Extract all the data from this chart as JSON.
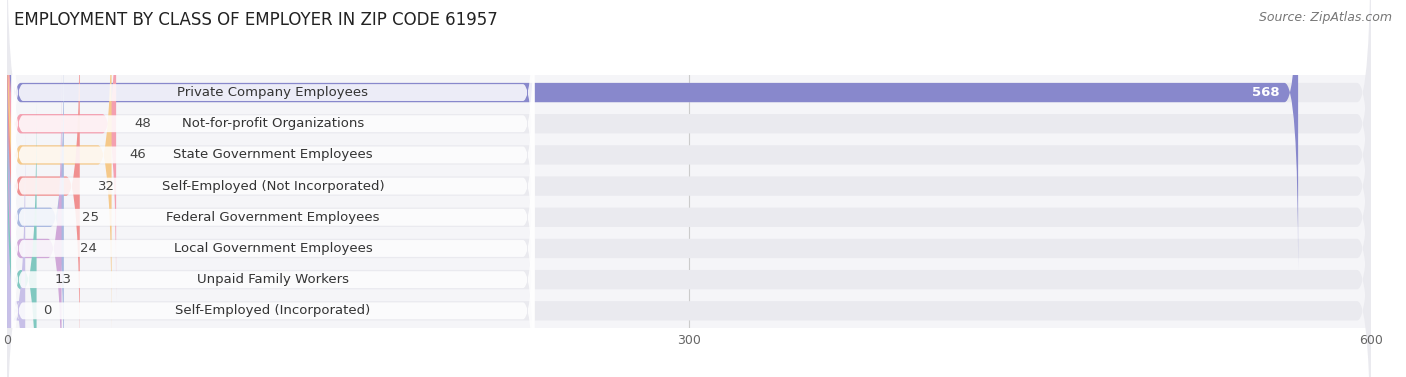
{
  "title": "EMPLOYMENT BY CLASS OF EMPLOYER IN ZIP CODE 61957",
  "source": "Source: ZipAtlas.com",
  "categories": [
    "Private Company Employees",
    "Not-for-profit Organizations",
    "State Government Employees",
    "Self-Employed (Not Incorporated)",
    "Federal Government Employees",
    "Local Government Employees",
    "Unpaid Family Workers",
    "Self-Employed (Incorporated)"
  ],
  "values": [
    568,
    48,
    46,
    32,
    25,
    24,
    13,
    0
  ],
  "bar_colors": [
    "#8888cc",
    "#f4a0b0",
    "#f5c98a",
    "#f09090",
    "#a8b8e0",
    "#d0a8d8",
    "#80c8c0",
    "#c8c0e8"
  ],
  "bar_bg_color": "#eaeaef",
  "xlim": [
    0,
    630
  ],
  "xlim_display": 600,
  "xticks": [
    0,
    300,
    600
  ],
  "title_fontsize": 12,
  "source_fontsize": 9,
  "label_fontsize": 9.5,
  "value_fontsize": 9.5,
  "background_color": "#ffffff",
  "plot_bg_color": "#f5f5f8"
}
